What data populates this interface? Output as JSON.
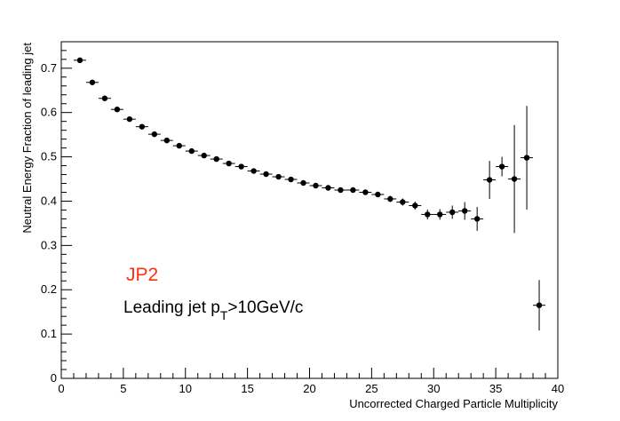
{
  "chart_data": {
    "type": "scatter",
    "title": "",
    "xlabel": "Uncorrected Charged Particle Multiplicity",
    "ylabel": "Neutral Energy Fraction of leading jet",
    "xlim": [
      0,
      40
    ],
    "ylim": [
      0,
      0.75
    ],
    "x_ticks": [
      0,
      5,
      10,
      15,
      20,
      25,
      30,
      35,
      40
    ],
    "y_ticks": [
      0,
      0.1,
      0.2,
      0.3,
      0.4,
      0.5,
      0.6,
      0.7
    ],
    "x_tick_labels": [
      "0",
      "5",
      "10",
      "15",
      "20",
      "25",
      "30",
      "35",
      "40"
    ],
    "y_tick_labels": [
      "0",
      "0.1",
      "0.2",
      "0.3",
      "0.4",
      "0.5",
      "0.6",
      "0.7"
    ],
    "grid": false,
    "legend": "none",
    "annotations": {
      "trigger_label": "JP2",
      "trigger_color": "#ff3010",
      "cut_label_main": "Leading jet p",
      "cut_label_sub": "T",
      "cut_label_rest": ">10GeV/c"
    },
    "series": [
      {
        "marker_color": "#000000",
        "x_err": 0.5,
        "points": [
          {
            "x": 1.5,
            "y": 0.718,
            "err": 0.004
          },
          {
            "x": 2.5,
            "y": 0.668,
            "err": 0.004
          },
          {
            "x": 3.5,
            "y": 0.632,
            "err": 0.004
          },
          {
            "x": 4.5,
            "y": 0.607,
            "err": 0.004
          },
          {
            "x": 5.5,
            "y": 0.585,
            "err": 0.004
          },
          {
            "x": 6.5,
            "y": 0.568,
            "err": 0.004
          },
          {
            "x": 7.5,
            "y": 0.551,
            "err": 0.004
          },
          {
            "x": 8.5,
            "y": 0.537,
            "err": 0.004
          },
          {
            "x": 9.5,
            "y": 0.525,
            "err": 0.004
          },
          {
            "x": 10.5,
            "y": 0.513,
            "err": 0.004
          },
          {
            "x": 11.5,
            "y": 0.503,
            "err": 0.004
          },
          {
            "x": 12.5,
            "y": 0.495,
            "err": 0.004
          },
          {
            "x": 13.5,
            "y": 0.485,
            "err": 0.004
          },
          {
            "x": 14.5,
            "y": 0.478,
            "err": 0.004
          },
          {
            "x": 15.5,
            "y": 0.468,
            "err": 0.004
          },
          {
            "x": 16.5,
            "y": 0.461,
            "err": 0.004
          },
          {
            "x": 17.5,
            "y": 0.455,
            "err": 0.004
          },
          {
            "x": 18.5,
            "y": 0.449,
            "err": 0.004
          },
          {
            "x": 19.5,
            "y": 0.441,
            "err": 0.004
          },
          {
            "x": 20.5,
            "y": 0.435,
            "err": 0.004
          },
          {
            "x": 21.5,
            "y": 0.43,
            "err": 0.005
          },
          {
            "x": 22.5,
            "y": 0.425,
            "err": 0.005
          },
          {
            "x": 23.5,
            "y": 0.425,
            "err": 0.005
          },
          {
            "x": 24.5,
            "y": 0.42,
            "err": 0.006
          },
          {
            "x": 25.5,
            "y": 0.415,
            "err": 0.006
          },
          {
            "x": 26.5,
            "y": 0.405,
            "err": 0.007
          },
          {
            "x": 27.5,
            "y": 0.398,
            "err": 0.008
          },
          {
            "x": 28.5,
            "y": 0.39,
            "err": 0.009
          },
          {
            "x": 29.5,
            "y": 0.37,
            "err": 0.011
          },
          {
            "x": 30.5,
            "y": 0.37,
            "err": 0.012
          },
          {
            "x": 31.5,
            "y": 0.375,
            "err": 0.015
          },
          {
            "x": 32.5,
            "y": 0.378,
            "err": 0.02
          },
          {
            "x": 33.5,
            "y": 0.36,
            "err": 0.027
          },
          {
            "x": 34.5,
            "y": 0.448,
            "err": 0.043
          },
          {
            "x": 35.5,
            "y": 0.478,
            "err": 0.022
          },
          {
            "x": 36.5,
            "y": 0.45,
            "err": 0.122
          },
          {
            "x": 37.5,
            "y": 0.498,
            "err": 0.117
          },
          {
            "x": 38.5,
            "y": 0.165,
            "err": 0.057
          }
        ]
      }
    ]
  }
}
